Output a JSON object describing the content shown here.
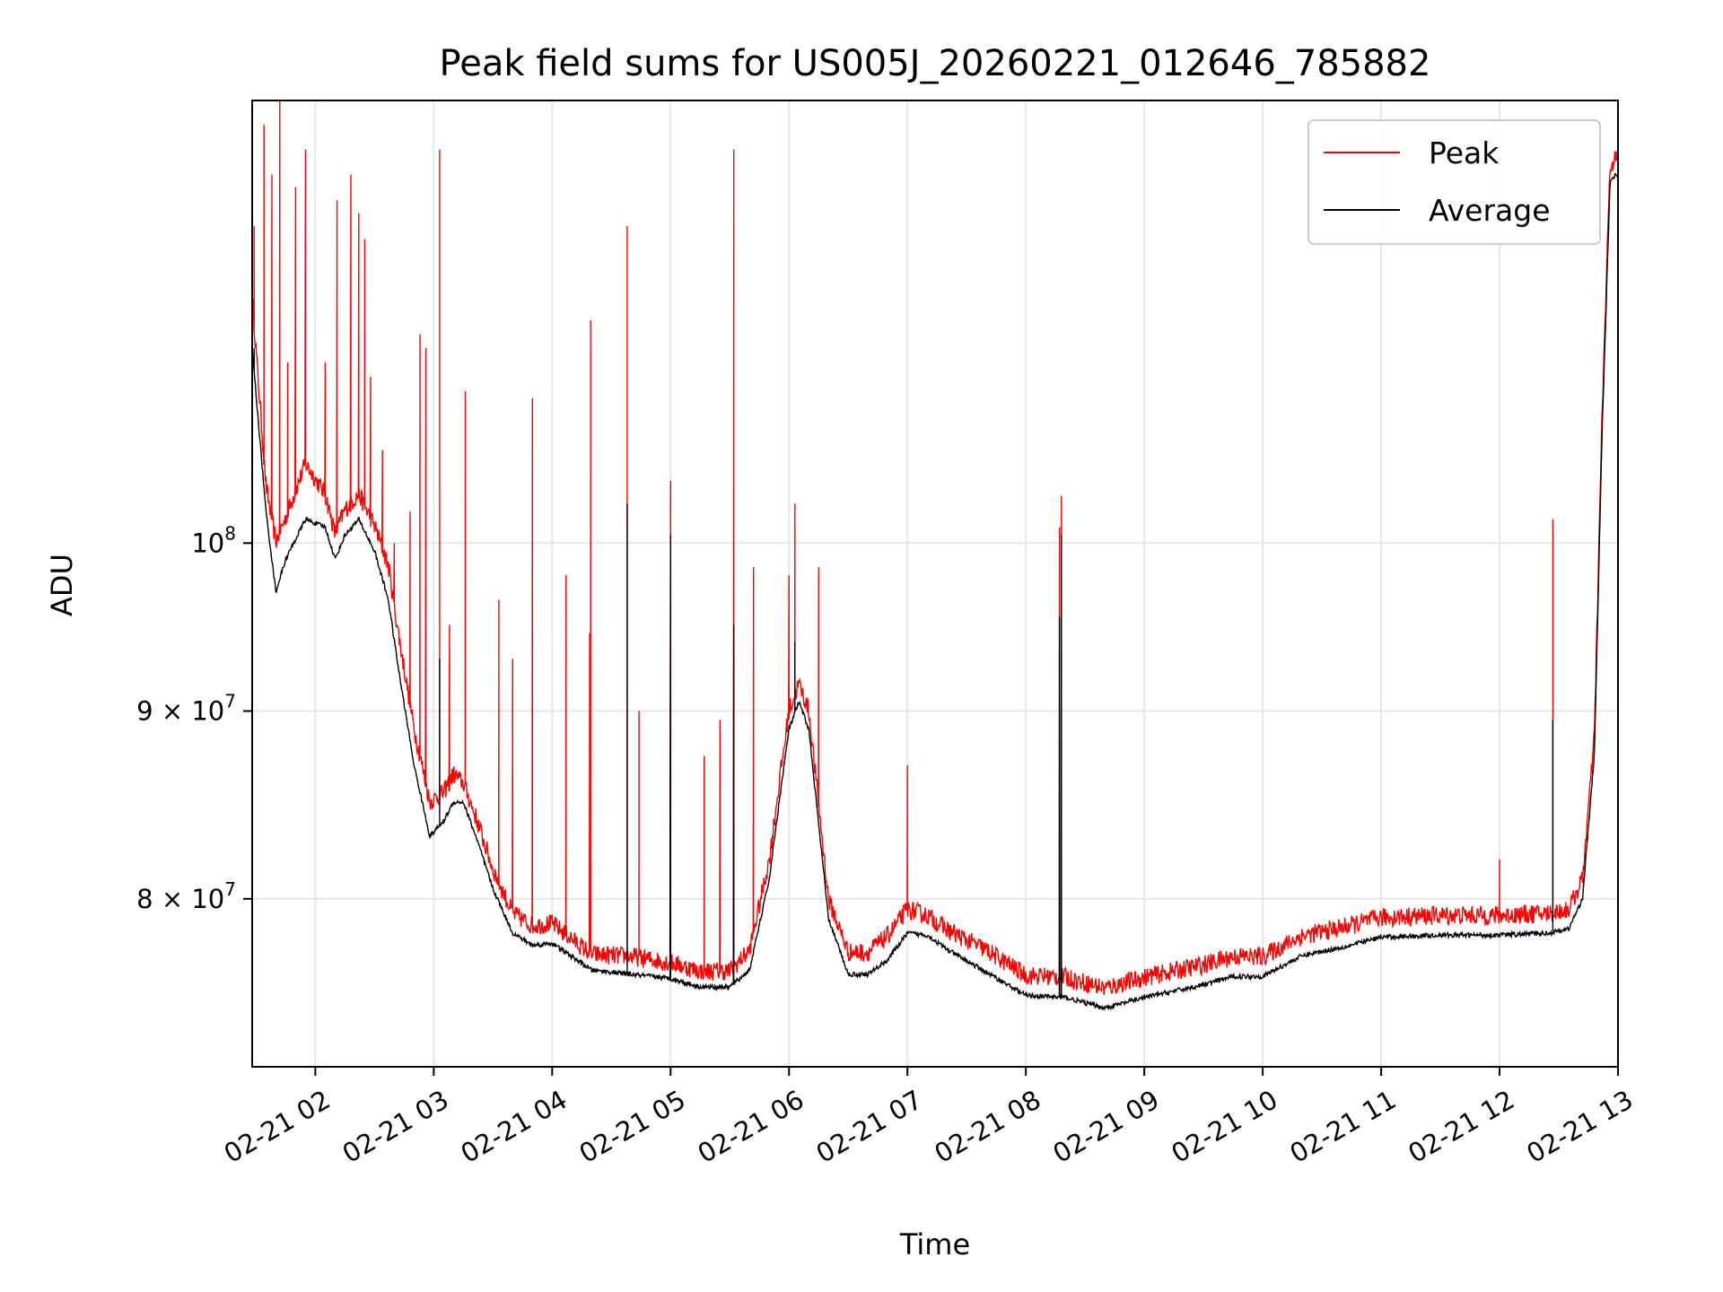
{
  "chart_data": {
    "type": "line",
    "title": "Peak field sums for US005J_20260221_012646_785882",
    "xlabel": "Time",
    "ylabel": "ADU",
    "x_range": [
      "2026-02-21T01:28:00",
      "2026-02-21T13:00:00"
    ],
    "y_range": [
      72000000,
      132000000
    ],
    "y_scale": "log",
    "x_ticks": [
      "02-21 02",
      "02-21 03",
      "02-21 04",
      "02-21 05",
      "02-21 06",
      "02-21 07",
      "02-21 08",
      "02-21 09",
      "02-21 10",
      "02-21 11",
      "02-21 12",
      "02-21 13"
    ],
    "y_ticks": [
      {
        "value": 80000000,
        "mantissa": "8",
        "base": "10",
        "exp": "7",
        "times": "×"
      },
      {
        "value": 90000000,
        "mantissa": "9",
        "base": "10",
        "exp": "7",
        "times": "×"
      },
      {
        "value": 100000000,
        "mantissa": "",
        "base": "10",
        "exp": "8",
        "times": ""
      }
    ],
    "grid": true,
    "legend_position": "upper right",
    "x": [
      "2026-02-21T01:28:00",
      "2026-02-21T01:35:00",
      "2026-02-21T01:40:00",
      "2026-02-21T01:45:00",
      "2026-02-21T01:55:00",
      "2026-02-21T02:05:00",
      "2026-02-21T02:10:00",
      "2026-02-21T02:15:00",
      "2026-02-21T02:22:00",
      "2026-02-21T02:30:00",
      "2026-02-21T02:37:00",
      "2026-02-21T02:42:00",
      "2026-02-21T02:50:00",
      "2026-02-21T02:58:00",
      "2026-02-21T03:05:00",
      "2026-02-21T03:10:00",
      "2026-02-21T03:15:00",
      "2026-02-21T03:22:00",
      "2026-02-21T03:30:00",
      "2026-02-21T03:40:00",
      "2026-02-21T03:50:00",
      "2026-02-21T04:00:00",
      "2026-02-21T04:20:00",
      "2026-02-21T04:40:00",
      "2026-02-21T05:00:00",
      "2026-02-21T05:15:00",
      "2026-02-21T05:30:00",
      "2026-02-21T05:40:00",
      "2026-02-21T05:50:00",
      "2026-02-21T05:55:00",
      "2026-02-21T06:00:00",
      "2026-02-21T06:05:00",
      "2026-02-21T06:10:00",
      "2026-02-21T06:20:00",
      "2026-02-21T06:30:00",
      "2026-02-21T06:40:00",
      "2026-02-21T06:50:00",
      "2026-02-21T07:00:00",
      "2026-02-21T07:10:00",
      "2026-02-21T07:20:00",
      "2026-02-21T07:40:00",
      "2026-02-21T08:00:00",
      "2026-02-21T08:20:00",
      "2026-02-21T08:40:00",
      "2026-02-21T09:00:00",
      "2026-02-21T09:30:00",
      "2026-02-21T09:45:00",
      "2026-02-21T10:00:00",
      "2026-02-21T10:20:00",
      "2026-02-21T10:40:00",
      "2026-02-21T11:00:00",
      "2026-02-21T11:30:00",
      "2026-02-21T12:00:00",
      "2026-02-21T12:25:00",
      "2026-02-21T12:35:00",
      "2026-02-21T12:42:00",
      "2026-02-21T12:48:00",
      "2026-02-21T12:52:00",
      "2026-02-21T12:56:00",
      "2026-02-21T12:59:00"
    ],
    "series": [
      {
        "name": "Peak",
        "color": "#ff0000",
        "values": [
          116000000,
          103000000,
          99500000,
          101000000,
          104500000,
          102500000,
          100000000,
          101500000,
          102500000,
          100500000,
          98000000,
          94000000,
          88500000,
          84500000,
          85000000,
          86000000,
          85500000,
          83500000,
          81000000,
          78800000,
          78200000,
          78300000,
          76800000,
          76700000,
          76400000,
          76000000,
          76000000,
          77000000,
          81500000,
          85500000,
          89500000,
          91000000,
          89500000,
          79500000,
          76900000,
          76900000,
          77700000,
          79000000,
          78700000,
          78000000,
          77000000,
          75800000,
          75700000,
          75200000,
          75700000,
          76300000,
          76700000,
          76700000,
          77700000,
          78100000,
          78600000,
          78700000,
          78700000,
          78800000,
          79000000,
          80500000,
          88000000,
          108000000,
          126000000,
          126500000
        ]
      },
      {
        "name": "Average",
        "color": "#000000",
        "values": [
          113000000,
          102000000,
          97000000,
          99000000,
          101500000,
          101000000,
          99000000,
          100500000,
          101500000,
          99500000,
          96500000,
          92500000,
          87000000,
          83200000,
          84000000,
          85000000,
          85000000,
          83000000,
          80500000,
          78300000,
          77700000,
          77800000,
          76500000,
          76300000,
          76100000,
          75700000,
          75700000,
          76500000,
          81000000,
          85000000,
          89000000,
          90500000,
          89000000,
          79000000,
          76300000,
          76300000,
          77000000,
          78300000,
          78200000,
          77500000,
          76400000,
          75300000,
          75200000,
          74700000,
          75200000,
          75800000,
          76200000,
          76200000,
          77200000,
          77600000,
          78100000,
          78200000,
          78200000,
          78300000,
          78500000,
          80000000,
          87500000,
          107500000,
          125500000,
          126000000
        ]
      }
    ],
    "peak_spikes": [
      {
        "t": "2026-02-21T01:29:00",
        "v": 122000000
      },
      {
        "t": "2026-02-21T01:34:00",
        "v": 130000000
      },
      {
        "t": "2026-02-21T01:38:00",
        "v": 126000000
      },
      {
        "t": "2026-02-21T01:42:00",
        "v": 132000000
      },
      {
        "t": "2026-02-21T01:46:00",
        "v": 112000000
      },
      {
        "t": "2026-02-21T01:50:00",
        "v": 125000000
      },
      {
        "t": "2026-02-21T01:55:00",
        "v": 128000000
      },
      {
        "t": "2026-02-21T02:05:00",
        "v": 112000000
      },
      {
        "t": "2026-02-21T02:11:00",
        "v": 124000000
      },
      {
        "t": "2026-02-21T02:18:00",
        "v": 126000000
      },
      {
        "t": "2026-02-21T02:22:00",
        "v": 123000000
      },
      {
        "t": "2026-02-21T02:25:00",
        "v": 121000000
      },
      {
        "t": "2026-02-21T02:28:00",
        "v": 111000000
      },
      {
        "t": "2026-02-21T02:34:00",
        "v": 106000000
      },
      {
        "t": "2026-02-21T02:40:00",
        "v": 100000000
      },
      {
        "t": "2026-02-21T02:48:00",
        "v": 102000000
      },
      {
        "t": "2026-02-21T02:53:00",
        "v": 114000000
      },
      {
        "t": "2026-02-21T02:56:00",
        "v": 113000000
      },
      {
        "t": "2026-02-21T03:03:00",
        "v": 128000000
      },
      {
        "t": "2026-02-21T03:08:00",
        "v": 95000000
      },
      {
        "t": "2026-02-21T03:16:00",
        "v": 110000000
      },
      {
        "t": "2026-02-21T03:33:00",
        "v": 96500000
      },
      {
        "t": "2026-02-21T03:40:00",
        "v": 93000000
      },
      {
        "t": "2026-02-21T03:50:00",
        "v": 109500000
      },
      {
        "t": "2026-02-21T04:07:00",
        "v": 98000000
      },
      {
        "t": "2026-02-21T04:19:00",
        "v": 94500000
      },
      {
        "t": "2026-02-21T04:19:30",
        "v": 115000000
      },
      {
        "t": "2026-02-21T04:38:00",
        "v": 122000000
      },
      {
        "t": "2026-02-21T04:44:00",
        "v": 90000000
      },
      {
        "t": "2026-02-21T05:00:00",
        "v": 104000000
      },
      {
        "t": "2026-02-21T05:17:00",
        "v": 87500000
      },
      {
        "t": "2026-02-21T05:25:00",
        "v": 89500000
      },
      {
        "t": "2026-02-21T05:32:00",
        "v": 128000000
      },
      {
        "t": "2026-02-21T05:42:00",
        "v": 98500000
      },
      {
        "t": "2026-02-21T06:00:00",
        "v": 98000000
      },
      {
        "t": "2026-02-21T06:03:00",
        "v": 102500000
      },
      {
        "t": "2026-02-21T06:15:00",
        "v": 98500000
      },
      {
        "t": "2026-02-21T07:00:00",
        "v": 87000000
      },
      {
        "t": "2026-02-21T08:17:00",
        "v": 101000000
      },
      {
        "t": "2026-02-21T08:18:00",
        "v": 103000000
      },
      {
        "t": "2026-02-21T12:00:00",
        "v": 82000000
      },
      {
        "t": "2026-02-21T12:27:00",
        "v": 101500000
      }
    ],
    "avg_spikes": [
      {
        "t": "2026-02-21T01:29:00",
        "v": 113000000
      },
      {
        "t": "2026-02-21T03:03:00",
        "v": 93000000
      },
      {
        "t": "2026-02-21T04:38:00",
        "v": 102500000
      },
      {
        "t": "2026-02-21T05:00:00",
        "v": 100500000
      },
      {
        "t": "2026-02-21T05:32:00",
        "v": 95000000
      },
      {
        "t": "2026-02-21T06:03:00",
        "v": 94000000
      },
      {
        "t": "2026-02-21T08:17:00",
        "v": 95500000
      },
      {
        "t": "2026-02-21T08:18:00",
        "v": 100500000
      },
      {
        "t": "2026-02-21T12:27:00",
        "v": 89500000
      }
    ],
    "legend": [
      {
        "label": "Peak",
        "color": "#ff0000"
      },
      {
        "label": "Average",
        "color": "#000000"
      }
    ]
  }
}
